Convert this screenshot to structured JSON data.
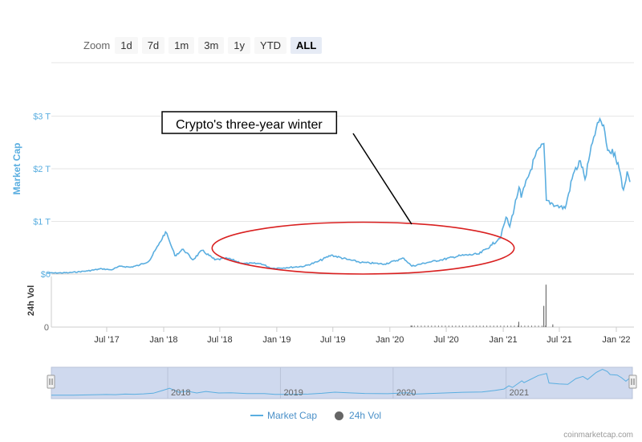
{
  "zoom": {
    "label": "Zoom",
    "buttons": [
      "1d",
      "7d",
      "1m",
      "3m",
      "1y",
      "YTD",
      "ALL"
    ],
    "active": "ALL"
  },
  "annotation": {
    "text": "Crypto's three-year winter"
  },
  "legend": {
    "market_cap": "Market Cap",
    "volume": "24h Vol"
  },
  "credit": "coinmarketcap.com",
  "colors": {
    "line": "#5aaee0",
    "annotation_ellipse": "#d92020",
    "volume": "#555555",
    "navigator_fill": "#cfd9ee"
  },
  "chart_data": {
    "type": "line",
    "x_unit": "date",
    "y_axis": {
      "label": "Market Cap",
      "ticks": [
        "$0",
        "$1 T",
        "$2 T",
        "$3 T"
      ],
      "tick_values": [
        0,
        1,
        2,
        3
      ],
      "unit": "trillion USD",
      "range": [
        0,
        3
      ]
    },
    "volume_axis": {
      "label": "24h Vol",
      "ticks": [
        "0"
      ]
    },
    "x_ticks": [
      "Jul '17",
      "Jan '18",
      "Jul '18",
      "Jan '19",
      "Jul '19",
      "Jan '20",
      "Jul '20",
      "Jan '21",
      "Jul '21",
      "Jan '22"
    ],
    "x_tick_dates": [
      "2017-07-01",
      "2018-01-01",
      "2018-07-01",
      "2019-01-01",
      "2019-07-01",
      "2020-01-01",
      "2020-07-01",
      "2021-01-01",
      "2021-07-01",
      "2022-01-01"
    ],
    "navigator_labels": [
      "2018",
      "2019",
      "2020",
      "2021"
    ],
    "series": [
      {
        "name": "Market Cap",
        "points": [
          [
            "2016-12-20",
            0.018
          ],
          [
            "2017-03-01",
            0.025
          ],
          [
            "2017-05-01",
            0.06
          ],
          [
            "2017-06-15",
            0.1
          ],
          [
            "2017-07-15",
            0.08
          ],
          [
            "2017-08-15",
            0.15
          ],
          [
            "2017-09-15",
            0.13
          ],
          [
            "2017-10-15",
            0.17
          ],
          [
            "2017-11-15",
            0.25
          ],
          [
            "2017-12-15",
            0.55
          ],
          [
            "2018-01-07",
            0.8
          ],
          [
            "2018-01-20",
            0.62
          ],
          [
            "2018-02-06",
            0.35
          ],
          [
            "2018-03-05",
            0.47
          ],
          [
            "2018-04-05",
            0.27
          ],
          [
            "2018-05-05",
            0.45
          ],
          [
            "2018-06-15",
            0.27
          ],
          [
            "2018-07-25",
            0.3
          ],
          [
            "2018-09-15",
            0.2
          ],
          [
            "2018-11-10",
            0.2
          ],
          [
            "2018-12-15",
            0.11
          ],
          [
            "2019-02-01",
            0.12
          ],
          [
            "2019-04-01",
            0.15
          ],
          [
            "2019-05-15",
            0.24
          ],
          [
            "2019-06-26",
            0.36
          ],
          [
            "2019-08-15",
            0.28
          ],
          [
            "2019-10-01",
            0.22
          ],
          [
            "2019-12-15",
            0.19
          ],
          [
            "2020-02-15",
            0.3
          ],
          [
            "2020-03-12",
            0.15
          ],
          [
            "2020-05-01",
            0.22
          ],
          [
            "2020-06-15",
            0.27
          ],
          [
            "2020-08-15",
            0.35
          ],
          [
            "2020-10-15",
            0.38
          ],
          [
            "2020-11-25",
            0.55
          ],
          [
            "2020-12-25",
            0.72
          ],
          [
            "2021-01-10",
            1.08
          ],
          [
            "2021-01-22",
            0.9
          ],
          [
            "2021-02-21",
            1.65
          ],
          [
            "2021-02-28",
            1.45
          ],
          [
            "2021-04-15",
            2.25
          ],
          [
            "2021-05-12",
            2.48
          ],
          [
            "2021-05-20",
            1.4
          ],
          [
            "2021-06-22",
            1.3
          ],
          [
            "2021-07-20",
            1.25
          ],
          [
            "2021-08-15",
            1.9
          ],
          [
            "2021-09-07",
            2.15
          ],
          [
            "2021-09-22",
            1.8
          ],
          [
            "2021-10-20",
            2.6
          ],
          [
            "2021-11-09",
            2.95
          ],
          [
            "2021-11-25",
            2.7
          ],
          [
            "2021-12-04",
            2.35
          ],
          [
            "2021-12-27",
            2.3
          ],
          [
            "2022-01-10",
            2.0
          ],
          [
            "2022-01-24",
            1.6
          ],
          [
            "2022-02-05",
            1.95
          ],
          [
            "2022-02-14",
            1.75
          ]
        ]
      },
      {
        "name": "24h Vol",
        "points": [
          [
            "2021-05-12",
            0.4
          ],
          [
            "2021-05-19",
            0.8
          ],
          [
            "2021-06-10",
            0.05
          ],
          [
            "2021-02-20",
            0.1
          ],
          [
            "2020-03-12",
            0.03
          ]
        ]
      }
    ],
    "annotation": {
      "text": "Crypto's three-year winter",
      "span": [
        "2018-06-01",
        "2020-12-31"
      ],
      "value_range": [
        0,
        1
      ]
    }
  }
}
